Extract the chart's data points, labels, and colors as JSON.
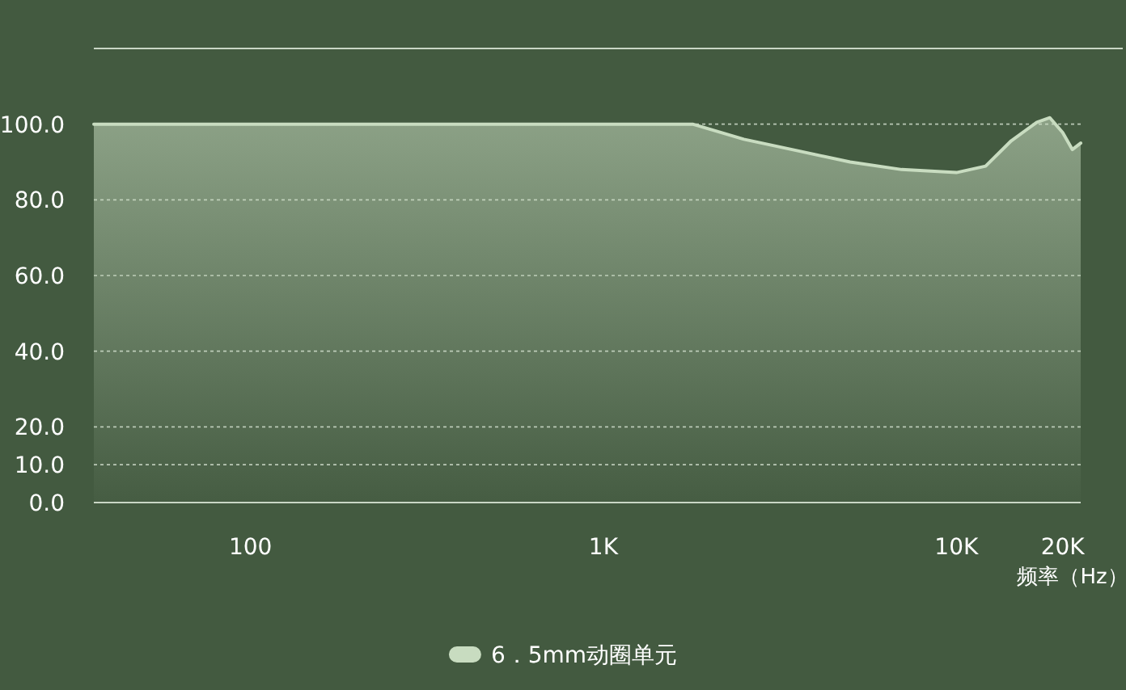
{
  "chart_data": {
    "type": "area",
    "xlabel": "频率（Hz）",
    "grid": "y",
    "legend": "bottom",
    "log": "x",
    "xlim": [
      36,
      22500
    ],
    "xticks": [
      100,
      {
        "value": 1000,
        "label": "1K"
      },
      {
        "value": 10000,
        "label": "10K"
      },
      {
        "value": 20000,
        "label": "20K"
      }
    ],
    "ylim": [
      0,
      120
    ],
    "yticks": [
      {
        "value": 0,
        "label": "0.0"
      },
      {
        "value": 10,
        "label": "10.0"
      },
      {
        "value": 20,
        "label": "20.0"
      },
      {
        "value": 40,
        "label": "40.0"
      },
      {
        "value": 60,
        "label": "60.0"
      },
      {
        "value": 80,
        "label": "80.0"
      },
      {
        "value": 100,
        "label": "100.0"
      }
    ],
    "x": [
      36,
      100,
      1000,
      1790,
      2500,
      3620,
      5000,
      7000,
      10000,
      12100,
      14300,
      16900,
      18400,
      20000,
      21300,
      22500
    ],
    "series": [
      {
        "name": "6．5mm动圈单元",
        "color": "#c8dcc0",
        "values": [
          100,
          100,
          100,
          100,
          96,
          92.8,
          90,
          88,
          87.2,
          88.9,
          95.6,
          100.5,
          101.7,
          97.8,
          93.3,
          95
        ]
      }
    ]
  }
}
